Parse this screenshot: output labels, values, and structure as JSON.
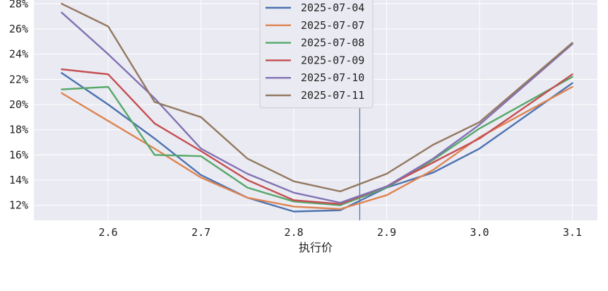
{
  "chart_data": {
    "type": "line",
    "xlabel": "执行价",
    "ylabel": "",
    "x": [
      2.55,
      2.6,
      2.65,
      2.7,
      2.75,
      2.8,
      2.85,
      2.9,
      2.95,
      3.0,
      3.1
    ],
    "x_ticks": [
      2.6,
      2.7,
      2.8,
      2.9,
      3.0,
      3.1
    ],
    "x_tick_labels": [
      "2.6",
      "2.7",
      "2.8",
      "2.9",
      "3.0",
      "3.1"
    ],
    "xlim": [
      2.52,
      3.127
    ],
    "ylim": [
      10.8,
      28.3
    ],
    "y_ticks": [
      12,
      14,
      16,
      18,
      20,
      22,
      24,
      26,
      28
    ],
    "y_tick_labels": [
      "12%",
      "14%",
      "16%",
      "18%",
      "20%",
      "22%",
      "24%",
      "26%",
      "28%"
    ],
    "grid": true,
    "legend_position": "top-center",
    "vertical_marker_x": 2.871,
    "vertical_marker_color": "#4C72B0",
    "series": [
      {
        "name": "2025-07-04",
        "color": "#4C72B0",
        "values": [
          22.5,
          20.0,
          17.3,
          14.4,
          12.6,
          11.5,
          11.6,
          13.4,
          14.6,
          16.5,
          21.7
        ]
      },
      {
        "name": "2025-07-07",
        "color": "#DD8452",
        "values": [
          20.9,
          18.7,
          16.5,
          14.2,
          12.6,
          11.9,
          11.7,
          12.8,
          14.8,
          17.4,
          21.4
        ]
      },
      {
        "name": "2025-07-08",
        "color": "#55A868",
        "values": [
          21.2,
          21.4,
          16.0,
          15.9,
          13.4,
          12.3,
          12.0,
          13.4,
          15.6,
          18.1,
          22.2
        ]
      },
      {
        "name": "2025-07-09",
        "color": "#C44E52",
        "values": [
          22.8,
          22.4,
          18.5,
          16.3,
          14.0,
          12.4,
          12.1,
          13.5,
          15.4,
          17.3,
          22.4
        ]
      },
      {
        "name": "2025-07-10",
        "color": "#8172B3",
        "values": [
          27.3,
          24.0,
          20.5,
          16.5,
          14.5,
          13.0,
          12.2,
          13.5,
          15.7,
          18.4,
          24.8
        ]
      },
      {
        "name": "2025-07-11",
        "color": "#937860",
        "values": [
          28.0,
          26.2,
          20.2,
          19.0,
          15.7,
          13.9,
          13.1,
          14.5,
          16.8,
          18.6,
          24.9
        ]
      }
    ]
  }
}
